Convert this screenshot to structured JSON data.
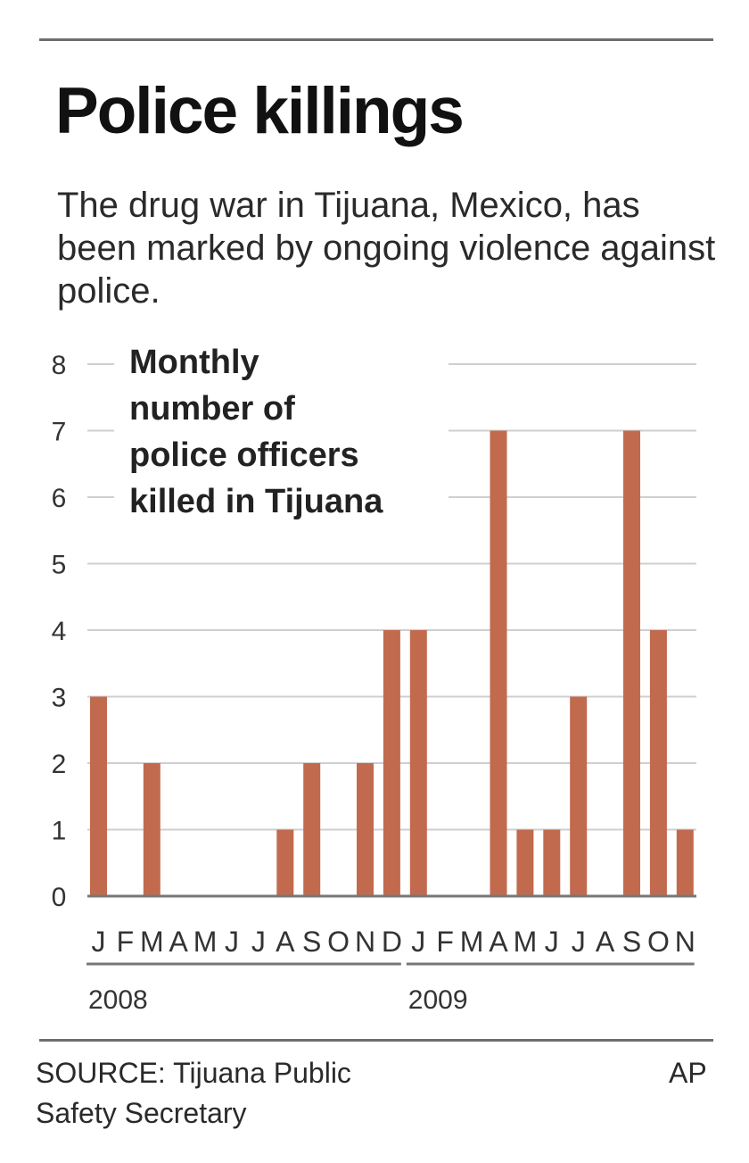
{
  "header": {
    "title": "Police killings",
    "subtitle": "The drug war in Tijuana, Mexico, has been marked by ongoing violence against police."
  },
  "chart_data": {
    "type": "bar",
    "title": "Monthly number of police officers killed in Tijuana",
    "title_lines": [
      "Monthly",
      "number of",
      "police officers",
      "killed in Tijuana"
    ],
    "categories": [
      "J",
      "F",
      "M",
      "A",
      "M",
      "J",
      "J",
      "A",
      "S",
      "O",
      "N",
      "D",
      "J",
      "F",
      "M",
      "A",
      "M",
      "J",
      "J",
      "A",
      "S",
      "O",
      "N"
    ],
    "years": [
      {
        "label": "2008",
        "months": 12
      },
      {
        "label": "2009",
        "months": 11
      }
    ],
    "values": [
      3,
      0,
      2,
      0,
      0,
      0,
      0,
      1,
      2,
      0,
      2,
      4,
      4,
      0,
      0,
      7,
      1,
      1,
      3,
      0,
      7,
      4,
      1
    ],
    "ylim": [
      0,
      8
    ],
    "yticks": [
      0,
      1,
      2,
      3,
      4,
      5,
      6,
      7,
      8
    ],
    "grid": true,
    "bar_color": "#c26a4e",
    "grid_color": "#cfcfcf"
  },
  "footer": {
    "source_line1": "SOURCE: Tijuana Public",
    "source_line2": "Safety Secretary",
    "credit": "AP"
  }
}
